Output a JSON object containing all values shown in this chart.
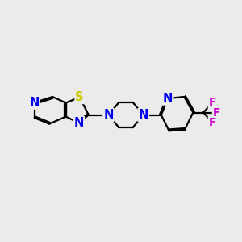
{
  "bg_color": "#ebebeb",
  "bond_color": "#000000",
  "N_color": "#0000ee",
  "S_color": "#cccc00",
  "F_color": "#cc00cc",
  "line_width": 1.6,
  "font_size": 10.5,
  "xlim": [
    0,
    10
  ],
  "ylim": [
    0,
    10
  ]
}
